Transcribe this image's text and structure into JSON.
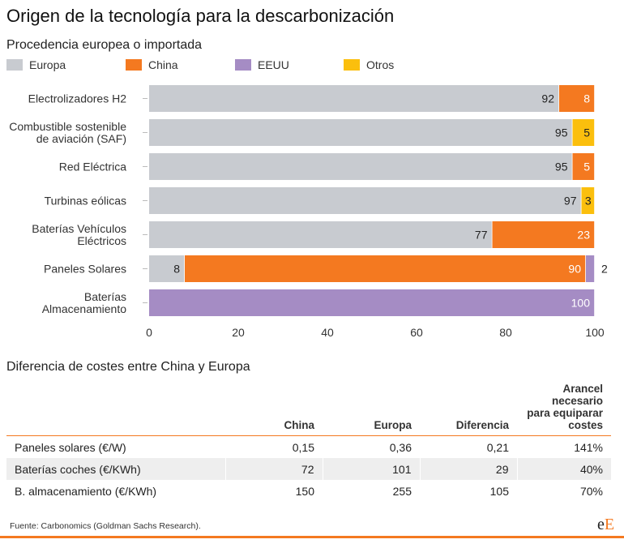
{
  "title": "Origen de la tecnología para la descarbonización",
  "subtitle": "Procedencia europea o importada",
  "legend": [
    {
      "name": "Europa",
      "color": "#c8cbd0"
    },
    {
      "name": "China",
      "color": "#f47920"
    },
    {
      "name": "EEUU",
      "color": "#a58cc4"
    },
    {
      "name": "Otros",
      "color": "#fbbf0d"
    }
  ],
  "chart_data": {
    "type": "bar",
    "orientation": "horizontal",
    "stacked": true,
    "categories": [
      "Electrolizadores H2",
      "Combustible sostenible\nde aviación (SAF)",
      "Red Eléctrica",
      "Turbinas eólicas",
      "Baterías Vehículos\nEléctricos",
      "Paneles Solares",
      "Baterías\nAlmacenamiento"
    ],
    "series": [
      {
        "name": "Europa",
        "color": "#c8cbd0",
        "values": [
          92,
          95,
          95,
          97,
          77,
          8,
          0
        ]
      },
      {
        "name": "China",
        "color": "#f47920",
        "values": [
          8,
          0,
          5,
          0,
          23,
          90,
          0
        ]
      },
      {
        "name": "EEUU",
        "color": "#a58cc4",
        "values": [
          0,
          0,
          0,
          0,
          0,
          2,
          100
        ]
      },
      {
        "name": "Otros",
        "color": "#fbbf0d",
        "values": [
          0,
          5,
          0,
          3,
          0,
          0,
          0
        ]
      }
    ],
    "xlim": [
      0,
      100
    ],
    "xticks": [
      0,
      20,
      40,
      60,
      80,
      100
    ],
    "grid": false,
    "legend_position": "top-left",
    "data_labels": true
  },
  "costs_table": {
    "title": "Diferencia de costes entre China y Europa",
    "headers": {
      "label": "",
      "china": "China",
      "europa": "Europa",
      "diferencia": "Diferencia",
      "arancel": [
        "Arancel necesario",
        "para equiparar",
        "costes"
      ]
    },
    "rows": [
      {
        "label": "Paneles solares (€/W)",
        "china": "0,15",
        "europa": "0,36",
        "diferencia": "0,21",
        "arancel": "141%"
      },
      {
        "label": "Baterías coches (€/KWh)",
        "china": "72",
        "europa": "101",
        "diferencia": "29",
        "arancel": "40%"
      },
      {
        "label": "B. almacenamiento (€/KWh)",
        "china": "150",
        "europa": "255",
        "diferencia": "105",
        "arancel": "70%"
      }
    ]
  },
  "source": "Fuente: Carbonomics (Goldman Sachs Research).",
  "logo": {
    "lower": "e",
    "upper": "E"
  }
}
